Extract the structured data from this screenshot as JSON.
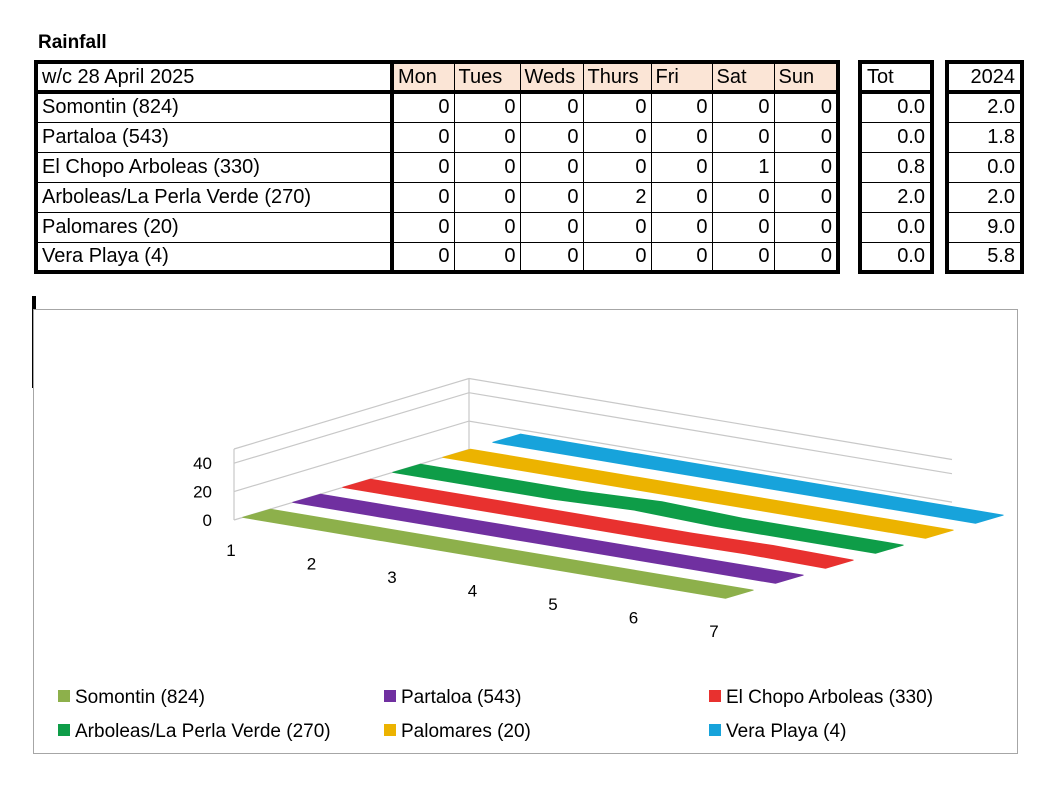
{
  "title": "Rainfall",
  "table": {
    "header": {
      "week": "w/c 28 April  2025",
      "days": [
        "Mon",
        "Tues",
        "Weds",
        "Thurs",
        "Fri",
        "Sat",
        "Sun"
      ],
      "tot": "Tot",
      "prev_year": "2024"
    },
    "rows": [
      {
        "name": "Somontin (824)",
        "days": [
          "0",
          "0",
          "0",
          "0",
          "0",
          "0",
          "0"
        ],
        "tot": "0.0",
        "prev_year": "2.0"
      },
      {
        "name": "Partaloa (543)",
        "days": [
          "0",
          "0",
          "0",
          "0",
          "0",
          "0",
          "0"
        ],
        "tot": "0.0",
        "prev_year": "1.8"
      },
      {
        "name": "El Chopo Arboleas (330)",
        "days": [
          "0",
          "0",
          "0",
          "0",
          "0",
          "1",
          "0"
        ],
        "tot": "0.8",
        "prev_year": "0.0"
      },
      {
        "name": "Arboleas/La Perla Verde (270)",
        "days": [
          "0",
          "0",
          "0",
          "2",
          "0",
          "0",
          "0"
        ],
        "tot": "2.0",
        "prev_year": "2.0"
      },
      {
        "name": "Palomares (20)",
        "days": [
          "0",
          "0",
          "0",
          "0",
          "0",
          "0",
          "0"
        ],
        "tot": "0.0",
        "prev_year": "9.0"
      },
      {
        "name": "Vera Playa (4)",
        "days": [
          "0",
          "0",
          "0",
          "0",
          "0",
          "0",
          "0"
        ],
        "tot": "0.0",
        "prev_year": "5.8"
      }
    ]
  },
  "chart_data": {
    "type": "line",
    "style": "3d-ribbon",
    "x": [
      "1",
      "2",
      "3",
      "4",
      "5",
      "6",
      "7"
    ],
    "y_ticks": [
      "0",
      "20",
      "40"
    ],
    "ylim": [
      0,
      50
    ],
    "grid": true,
    "legend": "bottom",
    "series": [
      {
        "name": "Somontin (824)",
        "color": "#8db04b",
        "values": [
          0,
          0,
          0,
          0,
          0,
          0,
          0
        ]
      },
      {
        "name": "Partaloa (543)",
        "color": "#7030a0",
        "values": [
          0,
          0,
          0,
          0,
          0,
          0,
          0
        ]
      },
      {
        "name": "El Chopo Arboleas (330)",
        "color": "#e8312f",
        "values": [
          0,
          0,
          0,
          0,
          0,
          0.8,
          0
        ]
      },
      {
        "name": "Arboleas/La Perla Verde (270)",
        "color": "#0e9d48",
        "values": [
          0,
          0,
          0,
          2,
          0,
          0,
          0
        ]
      },
      {
        "name": "Palomares (20)",
        "color": "#ecb300",
        "values": [
          0,
          0,
          0,
          0,
          0,
          0,
          0
        ]
      },
      {
        "name": "Vera Playa (4)",
        "color": "#17a3db",
        "values": [
          0,
          0,
          0,
          0,
          0,
          0,
          0
        ]
      }
    ]
  }
}
